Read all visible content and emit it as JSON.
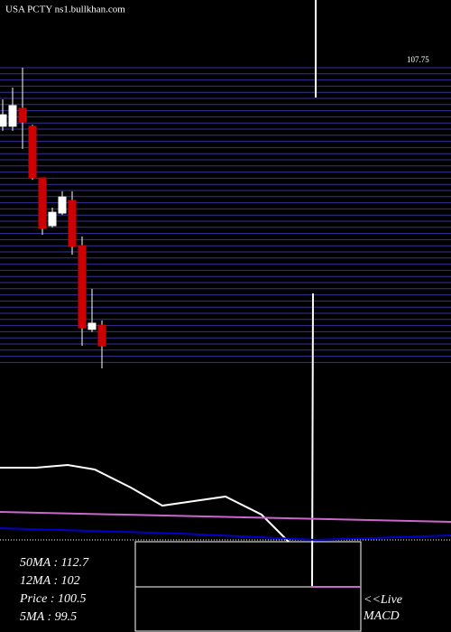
{
  "chart_data": [
    {
      "type": "candlestick",
      "title": "USA PCTY ns1.bullkhan.com",
      "ylim": [
        99.89,
        107.75
      ],
      "yticks": [
        {
          "value": 107.75,
          "label": "107.75"
        }
      ],
      "up_color": "#ffffff",
      "down_color": "#cc0000",
      "grid_color": "#333399",
      "open": [
        106.22,
        106.22,
        106.69,
        106.22,
        104.87,
        103.62,
        103.95,
        104.28,
        103.1,
        100.91,
        101.02
      ],
      "close": [
        106.52,
        106.76,
        106.33,
        104.87,
        103.55,
        103.97,
        104.37,
        103.08,
        100.95,
        101.07,
        100.48
      ],
      "high": [
        106.92,
        107.23,
        107.75,
        106.26,
        104.87,
        104.09,
        104.52,
        104.52,
        103.34,
        101.97,
        101.14
      ],
      "low": [
        106.1,
        106.1,
        105.63,
        104.82,
        103.38,
        103.57,
        103.9,
        102.86,
        100.48,
        100.84,
        99.89
      ]
    },
    {
      "type": "line",
      "xlim": [
        0,
        500
      ],
      "ylim": [
        0,
        100
      ],
      "series": [
        {
          "color": "#ffffff",
          "x": [
            0,
            40,
            75,
            105,
            145,
            180,
            215,
            250,
            290,
            320
          ],
          "values": [
            68.3,
            68.3,
            70.8,
            66.7,
            50,
            33.3,
            37.5,
            41.7,
            25,
            0
          ]
        },
        {
          "color": "#cc66cc",
          "x": [
            0,
            500
          ],
          "values": [
            27.5,
            18.3
          ]
        },
        {
          "color": "#0000cc",
          "x": [
            0,
            200,
            350,
            500
          ],
          "values": [
            12.5,
            7.5,
            1.7,
            5.8
          ]
        }
      ],
      "stats": [
        "50MA : 112.7",
        "12MA : 102",
        "Price   : 100.5",
        "5MA : 99.5"
      ],
      "notes": [
        "<<Live",
        "MACD"
      ]
    }
  ]
}
